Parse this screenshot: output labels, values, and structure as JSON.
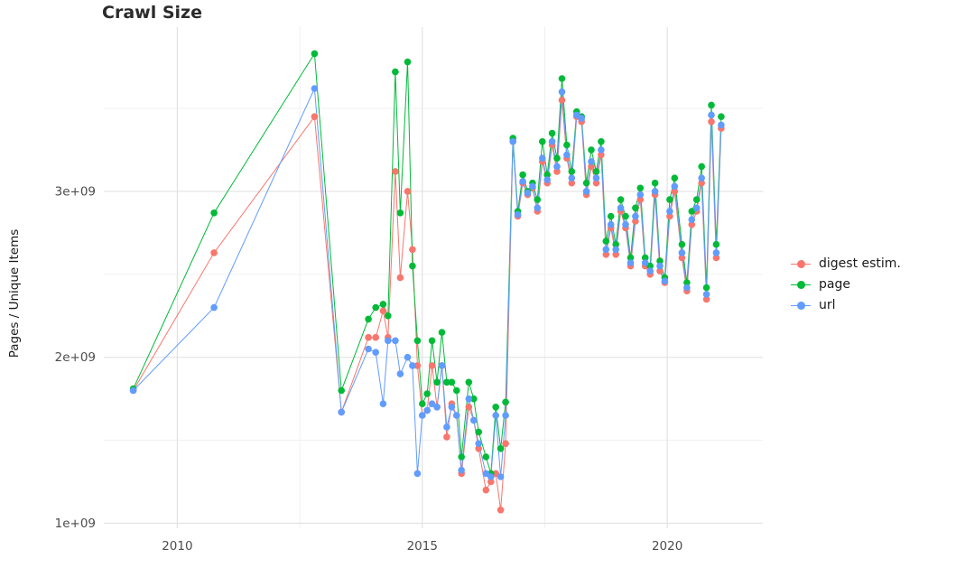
{
  "chart_data": {
    "type": "line",
    "title": "Crawl Size",
    "xlabel": "",
    "ylabel": "Pages / Unique Items",
    "legend_position": "right",
    "grid": true,
    "y_values_unit": "1e9",
    "xlim": [
      2008.5,
      2021.95
    ],
    "ylim": [
      0.97,
      3.99
    ],
    "x_ticks": [
      2010,
      2015,
      2020
    ],
    "x_tick_labels": [
      "2010",
      "2015",
      "2020"
    ],
    "x_minor_ticks": [
      2012.5,
      2017.5
    ],
    "y_ticks": [
      1,
      2,
      3
    ],
    "y_tick_labels": [
      "1e+09",
      "2e+09",
      "3e+09"
    ],
    "y_minor_ticks": [
      1.5,
      2.5,
      3.5
    ],
    "x": [
      2009.1,
      2010.75,
      2012.8,
      2013.35,
      2013.9,
      2014.05,
      2014.2,
      2014.3,
      2014.45,
      2014.55,
      2014.7,
      2014.8,
      2014.9,
      2015.0,
      2015.1,
      2015.2,
      2015.3,
      2015.4,
      2015.5,
      2015.6,
      2015.7,
      2015.8,
      2015.95,
      2016.05,
      2016.15,
      2016.3,
      2016.4,
      2016.5,
      2016.6,
      2016.7,
      2016.85,
      2016.95,
      2017.05,
      2017.15,
      2017.25,
      2017.35,
      2017.45,
      2017.55,
      2017.65,
      2017.75,
      2017.85,
      2017.95,
      2018.05,
      2018.15,
      2018.25,
      2018.35,
      2018.45,
      2018.55,
      2018.65,
      2018.75,
      2018.85,
      2018.95,
      2019.05,
      2019.15,
      2019.25,
      2019.35,
      2019.45,
      2019.55,
      2019.65,
      2019.75,
      2019.85,
      2019.95,
      2020.05,
      2020.15,
      2020.3,
      2020.4,
      2020.5,
      2020.6,
      2020.7,
      2020.8,
      2020.9,
      2021.0,
      2021.1
    ],
    "series": [
      {
        "id": "digest-estim",
        "name": "digest estim.",
        "color": "#F8766D",
        "values": [
          1.8,
          2.63,
          3.45,
          1.67,
          2.12,
          2.12,
          2.28,
          2.12,
          3.12,
          2.48,
          3.0,
          2.65,
          1.95,
          1.65,
          1.68,
          1.95,
          1.7,
          1.95,
          1.52,
          1.72,
          1.65,
          1.3,
          1.7,
          1.62,
          1.45,
          1.2,
          1.25,
          1.3,
          1.08,
          1.48,
          3.3,
          2.85,
          3.05,
          2.98,
          3.02,
          2.88,
          3.18,
          3.05,
          3.28,
          3.12,
          3.55,
          3.2,
          3.05,
          3.45,
          3.42,
          2.98,
          3.15,
          3.05,
          3.22,
          2.62,
          2.78,
          2.62,
          2.88,
          2.78,
          2.55,
          2.82,
          2.95,
          2.55,
          2.5,
          2.98,
          2.52,
          2.45,
          2.85,
          3.0,
          2.6,
          2.4,
          2.8,
          2.88,
          3.05,
          2.35,
          3.42,
          2.6,
          3.38
        ]
      },
      {
        "id": "page",
        "name": "page",
        "color": "#00BA38",
        "values": [
          1.81,
          2.87,
          3.83,
          1.8,
          2.23,
          2.3,
          2.32,
          2.25,
          3.72,
          2.87,
          3.78,
          2.55,
          2.1,
          1.72,
          1.78,
          2.1,
          1.85,
          2.15,
          1.85,
          1.85,
          1.8,
          1.4,
          1.85,
          1.75,
          1.55,
          1.4,
          1.3,
          1.7,
          1.45,
          1.73,
          3.32,
          2.88,
          3.1,
          3.0,
          3.05,
          2.95,
          3.3,
          3.1,
          3.35,
          3.2,
          3.68,
          3.28,
          3.12,
          3.48,
          3.45,
          3.05,
          3.25,
          3.12,
          3.3,
          2.7,
          2.85,
          2.68,
          2.95,
          2.85,
          2.6,
          2.9,
          3.02,
          2.6,
          2.55,
          3.05,
          2.58,
          2.48,
          2.95,
          3.08,
          2.68,
          2.45,
          2.88,
          2.95,
          3.15,
          2.42,
          3.52,
          2.68,
          3.45
        ]
      },
      {
        "id": "url",
        "name": "url",
        "color": "#619CFF",
        "values": [
          1.8,
          2.3,
          3.62,
          1.67,
          2.05,
          2.03,
          1.72,
          2.1,
          2.1,
          1.9,
          2.0,
          1.95,
          1.3,
          1.65,
          1.68,
          1.72,
          1.7,
          1.95,
          1.58,
          1.7,
          1.65,
          1.32,
          1.75,
          1.62,
          1.48,
          1.3,
          1.28,
          1.65,
          1.28,
          1.65,
          3.3,
          2.86,
          3.06,
          2.99,
          3.03,
          2.9,
          3.2,
          3.07,
          3.3,
          3.15,
          3.6,
          3.22,
          3.08,
          3.46,
          3.44,
          3.0,
          3.18,
          3.08,
          3.25,
          2.65,
          2.8,
          2.65,
          2.9,
          2.8,
          2.57,
          2.85,
          2.98,
          2.57,
          2.52,
          3.0,
          2.55,
          2.46,
          2.88,
          3.03,
          2.63,
          2.42,
          2.83,
          2.9,
          3.08,
          2.38,
          3.46,
          2.63,
          3.4
        ]
      }
    ],
    "colors": {
      "grid_major": "#e2e2e2",
      "grid_minor": "#f0f0f0",
      "tick_label": "#4d4d4d"
    }
  }
}
